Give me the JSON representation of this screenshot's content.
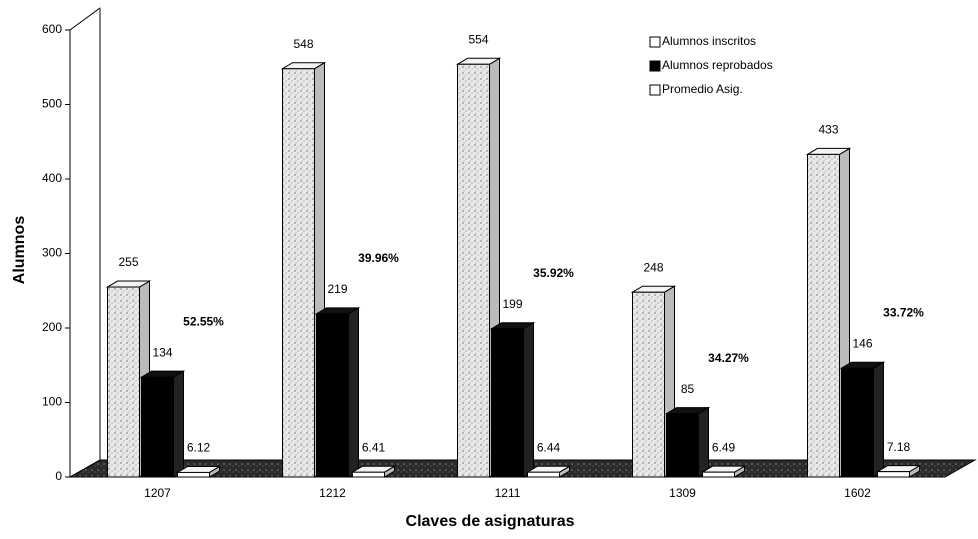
{
  "chart_data": {
    "type": "bar3d",
    "x_label": "Claves de asignaturas",
    "y_label": "Alumnos",
    "categories": [
      "1207",
      "1212",
      "1211",
      "1309",
      "1602"
    ],
    "series": [
      {
        "name": "Alumnos inscritos",
        "color": "#d4d4d4",
        "values": [
          255,
          548,
          554,
          248,
          433
        ]
      },
      {
        "name": "Alumnos reprobados",
        "color": "#000000",
        "values": [
          134,
          219,
          199,
          85,
          146
        ]
      },
      {
        "name": "Promedio Asig.",
        "color": "#ffffff",
        "values": [
          6.12,
          6.41,
          6.44,
          6.49,
          7.18
        ]
      }
    ],
    "annotations": [
      "52.55%",
      "39.96%",
      "35.92%",
      "34.27%",
      "33.72%"
    ],
    "ylim": [
      0,
      600
    ],
    "yticks": [
      0,
      100,
      200,
      300,
      400,
      500,
      600
    ],
    "grid": false,
    "legend": "top-right"
  }
}
